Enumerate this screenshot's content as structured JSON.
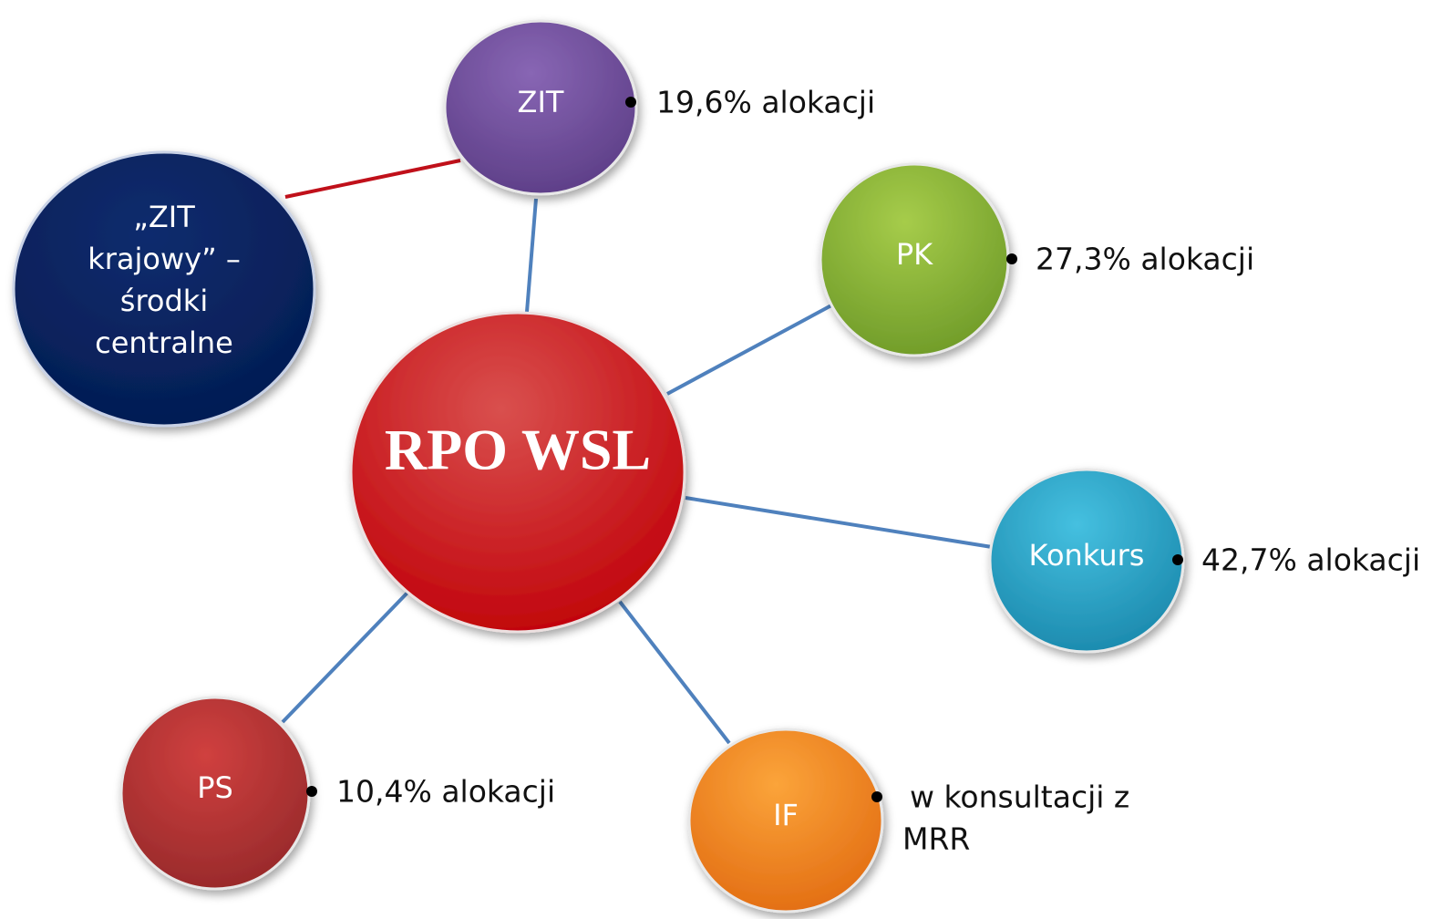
{
  "center": {
    "label": "RPO WSL"
  },
  "external": {
    "label_lines": [
      "„ZIT",
      "krajowy” –",
      "środki",
      "centralne"
    ]
  },
  "nodes": [
    {
      "label": "ZIT",
      "note": [
        "19,6% alokacji"
      ]
    },
    {
      "label": "PK",
      "note": [
        "27,3% alokacji"
      ]
    },
    {
      "label": "Konkurs",
      "note": [
        "42,7% alokacji"
      ]
    },
    {
      "label": "IF",
      "note": [
        "w konsultacji z",
        "MRR"
      ]
    },
    {
      "label": "PS",
      "note": [
        "10,4% alokacji"
      ]
    }
  ]
}
